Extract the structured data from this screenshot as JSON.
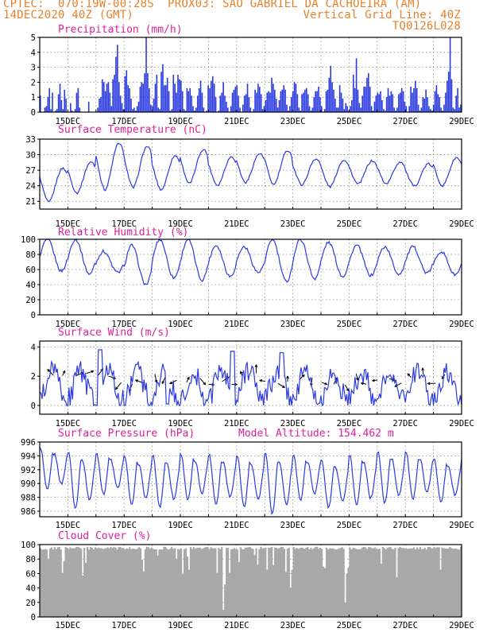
{
  "header": {
    "left_line1": "CPTEC:  070:19W-00:28S  PROX03: SAO GABRIEL DA CACHOEIRA (AM)",
    "left_line2": "14DEC2020 40Z (GMT)",
    "right_line2": "Vertical Grid Line: 40Z",
    "right_line3": "TQ0126L028"
  },
  "colors": {
    "header": "#e8802a",
    "title": "#e0209a",
    "series": "#2a3ae0",
    "cloud": "#a8a8a8",
    "grid": "#8a8a8a"
  },
  "x_axis": {
    "start_label": "14DEC2020",
    "tick_labels": [
      "15DEC",
      "17DEC",
      "19DEC",
      "21DEC",
      "23DEC",
      "25DEC",
      "27DEC",
      "29DEC"
    ],
    "unit": "days"
  },
  "chart_data": [
    {
      "type": "bar",
      "title": "Precipitation (mm/h)",
      "ylim": [
        0,
        5
      ],
      "yticks": [
        0,
        1,
        2,
        3,
        4,
        5
      ],
      "grid": true,
      "samples_per_day": 4,
      "values": [
        1.1,
        0,
        0,
        0.3,
        0.4,
        1.0,
        1.6,
        0.2,
        1.3,
        0,
        0.1,
        0.2,
        1.2,
        1.9,
        0.8,
        0.2,
        1.5,
        0.9,
        0,
        0,
        0.6,
        0.1,
        0,
        0.2,
        1.3,
        1.6,
        0.3,
        0,
        0,
        0,
        0,
        0,
        0.7,
        0,
        0,
        0,
        0,
        0,
        0.3,
        0.9,
        1.0,
        2.2,
        2.0,
        1.4,
        1.9,
        2.0,
        1.3,
        0.4,
        2.2,
        2.5,
        3.7,
        4.5,
        2.0,
        1.1,
        0.6,
        0.2,
        2.4,
        2.8,
        1.8,
        1.6,
        0.9,
        0.2,
        0.3,
        0.1,
        0.4,
        0.7,
        1.7,
        2.0,
        1.9,
        2.6,
        5.0,
        2.6,
        1.6,
        0.5,
        0.4,
        0.9,
        1.9,
        2.5,
        0.3,
        0.2,
        2.7,
        3.2,
        1.8,
        1.8,
        2.3,
        1.4,
        0.1,
        0.2,
        2.5,
        1.9,
        1.3,
        2.5,
        2.2,
        2.1,
        1.4,
        0.2,
        0.1,
        1.6,
        1.4,
        1.6,
        1.1,
        0.4,
        0.1,
        0.3,
        1.1,
        1.6,
        2.1,
        1.3,
        0.3,
        0,
        0.1,
        1.8,
        1.6,
        2.1,
        2.4,
        1.9,
        1.0,
        0,
        0.1,
        1.1,
        1.3,
        2.0,
        1.1,
        0.7,
        0.3,
        0,
        0.4,
        1.3,
        1.5,
        1.7,
        1.8,
        1.1,
        0.3,
        0,
        0.5,
        1.1,
        1.2,
        1.9,
        1.0,
        0.3,
        0,
        0.2,
        1.5,
        1.3,
        1.9,
        1.7,
        1.2,
        0.2,
        0.4,
        0.8,
        1.3,
        1.4,
        1.3,
        2.3,
        1.9,
        1.5,
        0.9,
        0.3,
        0.8,
        1.4,
        1.5,
        1.8,
        1.5,
        0.5,
        0.1,
        0.4,
        1.0,
        1.4,
        2.0,
        1.9,
        1.2,
        0.3,
        0.1,
        1.2,
        1.3,
        1.5,
        1.6,
        1.2,
        0.4,
        0.1,
        0.3,
        1.0,
        1.4,
        1.4,
        1.7,
        1.0,
        0.4,
        0,
        0.2,
        1.4,
        1.5,
        2.3,
        3.1,
        2.0,
        1.5,
        0.9,
        0.3,
        0.3,
        1.8,
        1.3,
        0.9,
        0.2,
        0.6,
        0.4,
        0.1,
        0.4,
        0.8,
        2.5,
        1.6,
        3.6,
        1.5,
        0.6,
        0.3,
        1.1,
        1.7,
        1.7,
        2.3,
        2.6,
        1.7,
        0.4,
        0.1,
        0.7,
        1.1,
        1.3,
        1.2,
        1.4,
        0.8,
        0.2,
        0.1,
        1.0,
        1.6,
        1.1,
        1.4,
        1.2,
        0.3,
        0.1,
        0.3,
        1.2,
        1.3,
        1.6,
        1.4,
        0.7,
        0.4,
        0,
        0.4,
        1.7,
        1.3,
        1.6,
        2.1,
        1.6,
        0.5,
        0.1,
        0.3,
        1.0,
        0.9,
        1.5,
        1.0,
        0.4,
        0.2,
        0.1,
        0.5,
        1.4,
        1.8,
        1.2,
        1.0,
        0.3,
        0.1,
        0.5,
        1.3,
        2.1,
        2.7,
        5.0,
        2.2,
        0.3,
        0.2,
        1.1,
        1.6,
        0.3,
        0.5
      ]
    },
    {
      "type": "line",
      "title": "Surface Temperature (nC)",
      "ylim": [
        19.5,
        33
      ],
      "yticks": [
        21,
        24,
        27,
        30,
        33
      ],
      "grid": true,
      "daily_min": [
        20.8,
        22.6,
        23.2,
        23.6,
        23.2,
        24.4,
        24.1,
        24.6,
        24.2,
        24.2,
        23.8,
        24.3,
        24.4,
        23.9,
        24.0
      ],
      "daily_max": [
        27.4,
        28.6,
        32.2,
        31.6,
        29.8,
        31.0,
        29.6,
        30.2,
        30.8,
        29.2,
        29.0,
        28.8,
        28.6,
        28.2,
        29.4
      ]
    },
    {
      "type": "line",
      "title": "Relative Humidity (%)",
      "ylim": [
        0,
        100
      ],
      "yticks": [
        0,
        20,
        40,
        60,
        80,
        100
      ],
      "grid": true,
      "daily_min": [
        58,
        54,
        56,
        40,
        49,
        46,
        51,
        56,
        44,
        48,
        51,
        52,
        54,
        55,
        53
      ],
      "daily_max": [
        100,
        100,
        84,
        92,
        100,
        100,
        92,
        90,
        100,
        100,
        96,
        92,
        90,
        90,
        84
      ]
    },
    {
      "type": "line",
      "title": "Surface Wind (m/s)",
      "ylim": [
        -0.6,
        4.4
      ],
      "yticks": [
        0,
        2,
        4
      ],
      "grid": true,
      "base_level": 1.3,
      "amplitude": 1.0
    },
    {
      "type": "line",
      "title": "Surface Pressure (hPa)",
      "annotation": "Model Altitude: 154.462 m",
      "ylim": [
        985.2,
        996
      ],
      "yticks": [
        986,
        988,
        990,
        992,
        994,
        996
      ],
      "grid": true,
      "daily_max": [
        995.2,
        994.6,
        994.4,
        994.0,
        994.1,
        994.3,
        994.2,
        994.0,
        994.4,
        994.2,
        993.4,
        994.1,
        994.6,
        994.6,
        993.5
      ],
      "daily_min": [
        989.0,
        986.4,
        988.4,
        986.8,
        986.6,
        987.6,
        987.0,
        986.6,
        985.6,
        987.6,
        986.5,
        986.8,
        987.2,
        987.6,
        987.4
      ]
    },
    {
      "type": "bar",
      "title": "Cloud Cover (%)",
      "ylim": [
        0,
        100
      ],
      "yticks": [
        0,
        20,
        40,
        60,
        80,
        100
      ],
      "grid": true,
      "typical_level": 97
    }
  ]
}
